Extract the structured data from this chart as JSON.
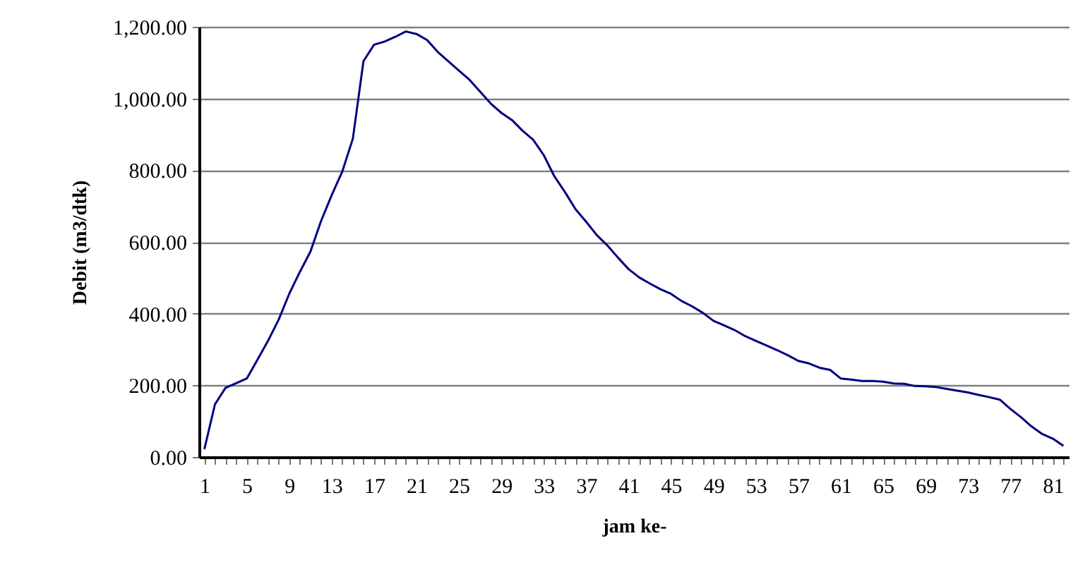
{
  "chart_data": {
    "type": "line",
    "xlabel": "jam ke-",
    "ylabel": "Debit (m3/dtk)",
    "categories": [
      "1",
      null,
      null,
      null,
      "5",
      null,
      null,
      null,
      "9",
      null,
      null,
      null,
      "13",
      null,
      null,
      null,
      "17",
      null,
      null,
      null,
      "21",
      null,
      null,
      null,
      "25",
      null,
      null,
      null,
      "29",
      null,
      null,
      null,
      "33",
      null,
      null,
      null,
      "37",
      null,
      null,
      null,
      "41",
      null,
      null,
      null,
      "45",
      null,
      null,
      null,
      "49",
      null,
      null,
      null,
      "53",
      null,
      null,
      null,
      "57",
      null,
      null,
      null,
      "61",
      null,
      null,
      null,
      "65",
      null,
      null,
      null,
      "69",
      null,
      null,
      null,
      "73",
      null,
      null,
      null,
      "77",
      null,
      null,
      null,
      "81",
      null
    ],
    "series": [
      {
        "color": "#000080",
        "values": [
          22,
          147,
          193,
          206,
          219,
          271,
          324,
          383,
          455,
          516,
          573,
          658,
          730,
          796,
          888,
          1104,
          1150,
          1159,
          1172,
          1187,
          1180,
          1163,
          1130,
          1104,
          1078,
          1052,
          1019,
          986,
          960,
          940,
          910,
          885,
          842,
          783,
          739,
          691,
          656,
          619,
          590,
          556,
          524,
          501,
          484,
          468,
          455,
          435,
          420,
          402,
          380,
          367,
          354,
          337,
          324,
          311,
          298,
          284,
          268,
          261,
          249,
          243,
          219,
          216,
          212,
          212,
          210,
          205,
          204,
          198,
          197,
          195,
          190,
          185,
          180,
          173,
          167,
          160,
          134,
          111,
          85,
          64,
          51,
          31
        ]
      }
    ],
    "ylim": [
      0,
      1200
    ],
    "yticks": [
      {
        "value": 0,
        "label": "0.00"
      },
      {
        "value": 200,
        "label": "200.00"
      },
      {
        "value": 400,
        "label": "400.00"
      },
      {
        "value": 600,
        "label": "600.00"
      },
      {
        "value": 800,
        "label": "800.00"
      },
      {
        "value": 1000,
        "label": "1,000.00"
      },
      {
        "value": 1200,
        "label": "1,200.00"
      }
    ],
    "grid": "y",
    "marker": "none",
    "line_style": "solid"
  }
}
